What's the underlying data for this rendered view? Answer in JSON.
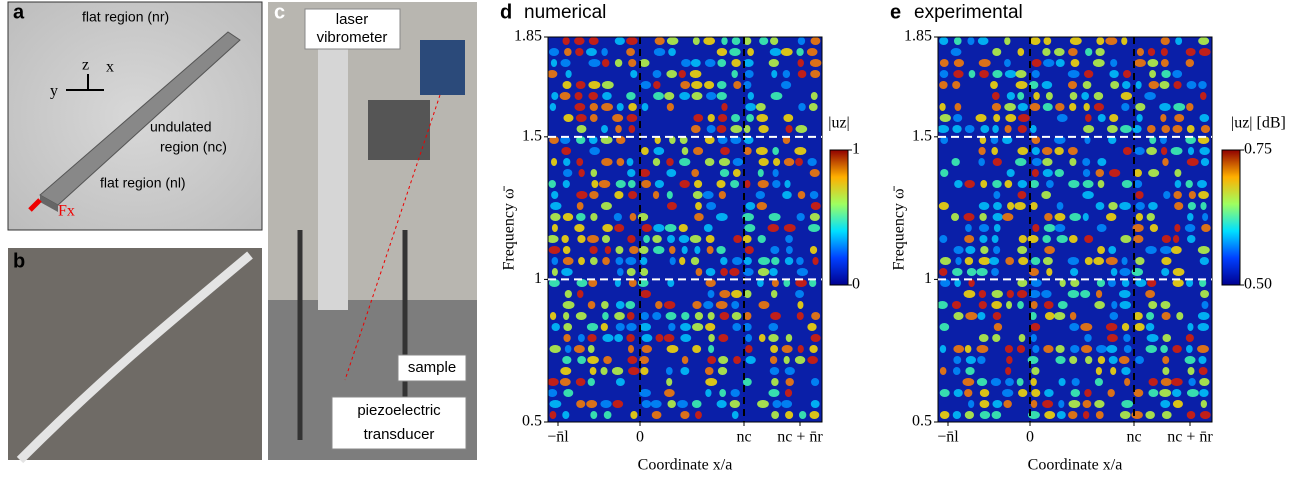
{
  "panels": {
    "a": {
      "label": "a",
      "axes": [
        "z",
        "x",
        "y"
      ],
      "flat_top": "flat region (nr)",
      "undulated": [
        "undulated",
        "region (nc)"
      ],
      "flat_bottom": "flat region (nl)",
      "force": "Fx"
    },
    "b": {
      "label": "b"
    },
    "c": {
      "label": "c",
      "laser": [
        "laser",
        "vibrometer"
      ],
      "sample": "sample",
      "transducer": [
        "piezoelectric",
        "transducer"
      ]
    },
    "d": {
      "label": "d",
      "title": "numerical",
      "ylabel": "Frequency ω̄",
      "xlabel": "Coordinate x/a",
      "xticks": [
        "−n̄l",
        "0",
        "nc",
        "nc + n̄r"
      ],
      "ylim": [
        0.5,
        1.85
      ],
      "yticks": [
        0.5,
        1,
        1.5,
        1.85
      ],
      "colorbar": {
        "label": "|uz|",
        "lim": [
          0,
          1
        ],
        "ticks": [
          0,
          1
        ]
      }
    },
    "e": {
      "label": "e",
      "title": "experimental",
      "ylabel": "Frequency ω̄",
      "xlabel": "Coordinate x/a",
      "xticks": [
        "−n̄l",
        "0",
        "nc",
        "nc + n̄r"
      ],
      "ylim": [
        0.5,
        1.85
      ],
      "yticks": [
        0.5,
        1,
        1.5,
        1.85
      ],
      "colorbar": {
        "label": "|uz| [dB]",
        "lim": [
          0.5,
          0.75
        ],
        "ticks": [
          {
            "value": 0.5,
            "label": "0.50"
          },
          {
            "value": 0.75,
            "label": "0.75"
          }
        ]
      }
    }
  }
}
